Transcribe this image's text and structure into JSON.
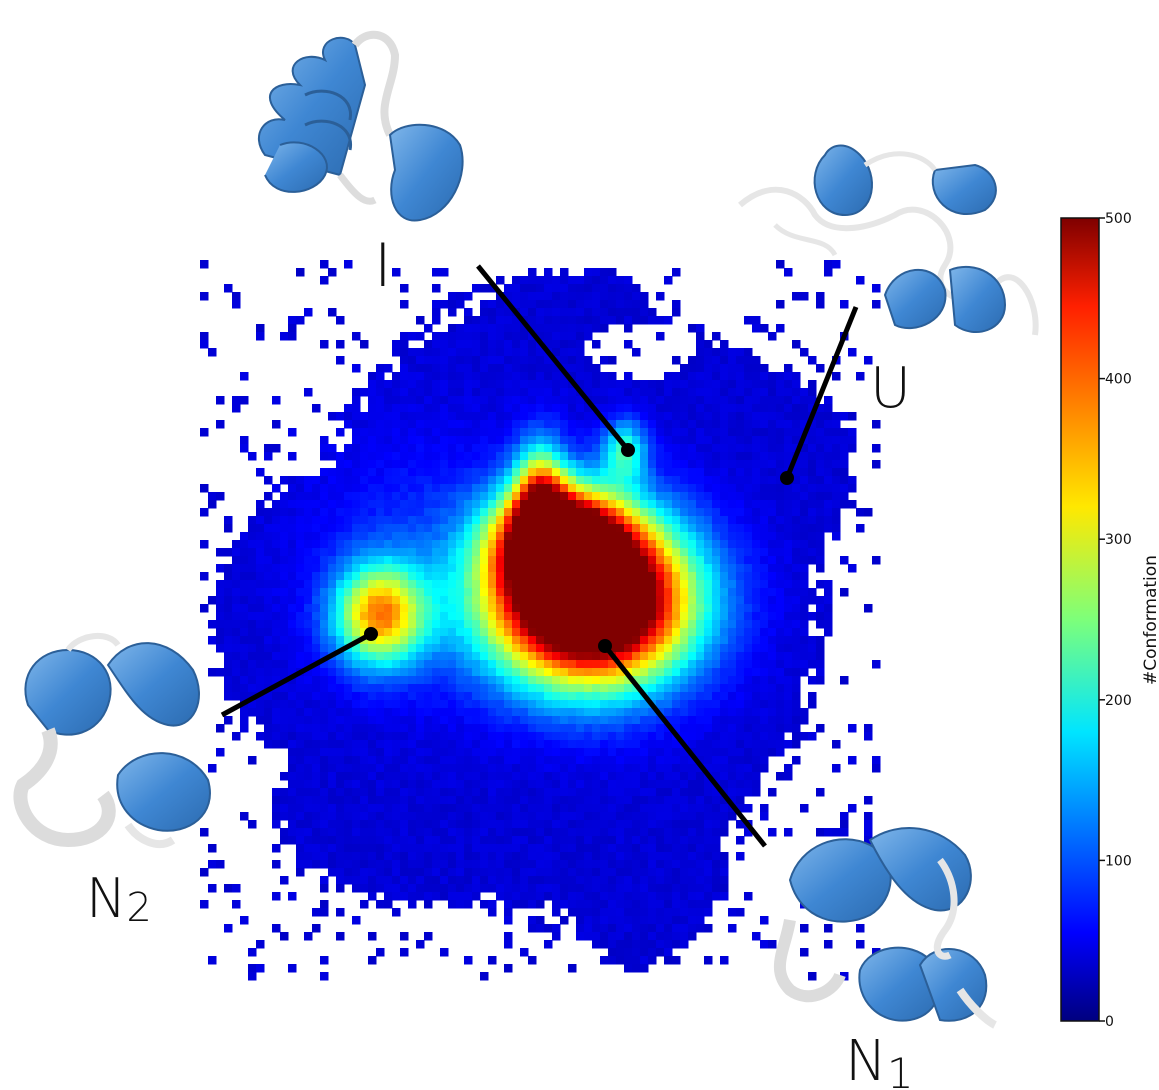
{
  "chart_data": {
    "type": "heatmap",
    "title": "",
    "xlabel": "",
    "ylabel": "",
    "colormap": "jet",
    "colorbar": {
      "label": "#Conformation",
      "range": [
        0,
        500
      ],
      "ticks": [
        0,
        100,
        200,
        300,
        400,
        500
      ]
    },
    "density_regions": [
      {
        "name": "N1 basin",
        "peak_value": 500
      },
      {
        "name": "N2 basin",
        "peak_value": 320
      },
      {
        "name": "I basin",
        "peak_value": 180
      },
      {
        "name": "U region",
        "peak_value": 40
      }
    ],
    "states": [
      {
        "id": "I",
        "label": "I",
        "subscript": ""
      },
      {
        "id": "U",
        "label": "U",
        "subscript": ""
      },
      {
        "id": "N2",
        "label": "N",
        "subscript": "2"
      },
      {
        "id": "N1",
        "label": "N",
        "subscript": "1"
      }
    ],
    "structure_icons": [
      "protein-structure-I-icon",
      "protein-structure-U-icon",
      "protein-structure-N2-icon",
      "protein-structure-N1-icon"
    ]
  },
  "colors": {
    "helix": "#4a90d9",
    "coil": "#e6e6e6",
    "background": "#ffffff",
    "line": "#000000"
  }
}
